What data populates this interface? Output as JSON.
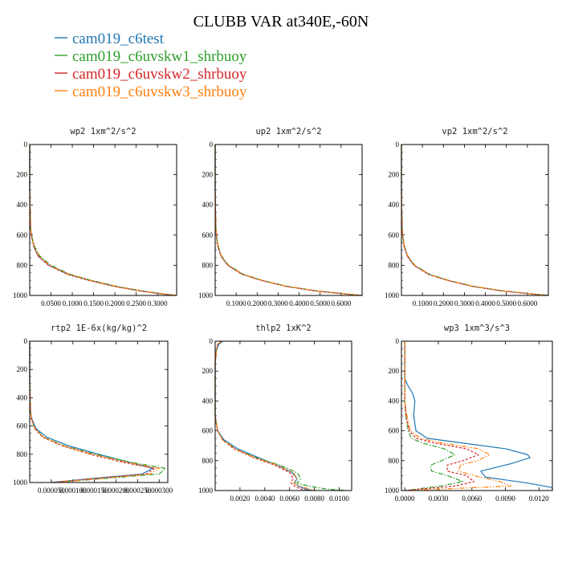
{
  "figure": {
    "title": "CLUBB VAR at340E,-60N",
    "legend": [
      {
        "label": "cam019_c6test",
        "color": "#1f77b4",
        "dash": "solid"
      },
      {
        "label": "cam019_c6uvskw1_shrbuoy",
        "color": "#2ca02c",
        "dash": "dashdot"
      },
      {
        "label": "cam019_c6uvskw2_shrbuoy",
        "color": "#d62728",
        "dash": "dash"
      },
      {
        "label": "cam019_c6uvskw3_shrbuoy",
        "color": "#ff7f0e",
        "dash": "dashdotdot"
      }
    ]
  },
  "chart_data": [
    {
      "type": "line",
      "title": "wp2  1xm^2/s^2",
      "ylim": [
        1000,
        0
      ],
      "xlim": [
        0.0,
        0.345
      ],
      "xticks": [
        0.05,
        0.1,
        0.15,
        0.2,
        0.25,
        0.3
      ],
      "xtick_labels": [
        "0.0500",
        "0.1000",
        "0.1500",
        "0.2000",
        "0.2500",
        "0.3000"
      ],
      "yticks": [
        0,
        200,
        400,
        600,
        800,
        1000
      ],
      "series": [
        {
          "y": [
            0,
            300,
            550,
            620,
            680,
            740,
            800,
            860,
            900,
            940,
            970,
            990,
            1000
          ],
          "x": [
            0.0,
            0.0,
            0.002,
            0.005,
            0.01,
            0.02,
            0.045,
            0.09,
            0.14,
            0.2,
            0.26,
            0.31,
            0.345
          ]
        },
        {
          "y": [
            0,
            300,
            550,
            620,
            680,
            740,
            800,
            860,
            900,
            940,
            970,
            990,
            1000
          ],
          "x": [
            0.0,
            0.0,
            0.002,
            0.006,
            0.012,
            0.024,
            0.05,
            0.095,
            0.145,
            0.205,
            0.265,
            0.315,
            0.345
          ]
        },
        {
          "y": [
            0,
            300,
            550,
            620,
            680,
            740,
            800,
            860,
            900,
            940,
            970,
            990,
            1000
          ],
          "x": [
            0.0,
            0.0,
            0.002,
            0.005,
            0.01,
            0.02,
            0.044,
            0.088,
            0.138,
            0.198,
            0.258,
            0.308,
            0.345
          ]
        },
        {
          "y": [
            0,
            300,
            550,
            620,
            680,
            740,
            800,
            860,
            900,
            940,
            970,
            990,
            1000
          ],
          "x": [
            0.0,
            0.0,
            0.002,
            0.005,
            0.011,
            0.022,
            0.047,
            0.092,
            0.142,
            0.202,
            0.262,
            0.312,
            0.345
          ]
        }
      ]
    },
    {
      "type": "line",
      "title": "up2  1xm^2/s^2",
      "ylim": [
        1000,
        0
      ],
      "xlim": [
        0.0,
        0.7
      ],
      "xticks": [
        0.1,
        0.2,
        0.3,
        0.4,
        0.5,
        0.6
      ],
      "xtick_labels": [
        "0.1000",
        "0.2000",
        "0.3000",
        "0.4000",
        "0.5000",
        "0.6000"
      ],
      "yticks": [
        0,
        200,
        400,
        600,
        800,
        1000
      ],
      "series": [
        {
          "y": [
            0,
            300,
            550,
            620,
            680,
            740,
            800,
            860,
            900,
            940,
            970,
            990,
            1000
          ],
          "x": [
            0.0,
            0.0,
            0.003,
            0.007,
            0.014,
            0.028,
            0.06,
            0.13,
            0.22,
            0.34,
            0.48,
            0.62,
            0.7
          ]
        },
        {
          "y": [
            0,
            300,
            550,
            620,
            680,
            740,
            800,
            860,
            900,
            940,
            970,
            990,
            1000
          ],
          "x": [
            0.0,
            0.0,
            0.003,
            0.008,
            0.016,
            0.031,
            0.064,
            0.135,
            0.225,
            0.345,
            0.485,
            0.625,
            0.7
          ]
        },
        {
          "y": [
            0,
            300,
            550,
            620,
            680,
            740,
            800,
            860,
            900,
            940,
            970,
            990,
            1000
          ],
          "x": [
            0.0,
            0.0,
            0.003,
            0.007,
            0.014,
            0.028,
            0.059,
            0.128,
            0.218,
            0.338,
            0.478,
            0.618,
            0.7
          ]
        },
        {
          "y": [
            0,
            300,
            550,
            620,
            680,
            740,
            800,
            860,
            900,
            940,
            970,
            990,
            1000
          ],
          "x": [
            0.0,
            0.0,
            0.003,
            0.007,
            0.015,
            0.03,
            0.062,
            0.132,
            0.222,
            0.342,
            0.482,
            0.622,
            0.7
          ]
        }
      ]
    },
    {
      "type": "line",
      "title": "vp2  1xm^2/s^2",
      "ylim": [
        1000,
        0
      ],
      "xlim": [
        0.0,
        0.7
      ],
      "xticks": [
        0.1,
        0.2,
        0.3,
        0.4,
        0.5,
        0.6
      ],
      "xtick_labels": [
        "0.1000",
        "0.2000",
        "0.3000",
        "0.4000",
        "0.5000",
        "0.6000"
      ],
      "yticks": [
        0,
        200,
        400,
        600,
        800,
        1000
      ],
      "series": [
        {
          "y": [
            0,
            300,
            550,
            620,
            680,
            740,
            800,
            860,
            900,
            940,
            970,
            990,
            1000
          ],
          "x": [
            0.0,
            0.0,
            0.003,
            0.007,
            0.014,
            0.028,
            0.06,
            0.13,
            0.22,
            0.34,
            0.48,
            0.62,
            0.7
          ]
        },
        {
          "y": [
            0,
            300,
            550,
            620,
            680,
            740,
            800,
            860,
            900,
            940,
            970,
            990,
            1000
          ],
          "x": [
            0.0,
            0.0,
            0.003,
            0.008,
            0.016,
            0.031,
            0.064,
            0.135,
            0.225,
            0.345,
            0.485,
            0.625,
            0.7
          ]
        },
        {
          "y": [
            0,
            300,
            550,
            620,
            680,
            740,
            800,
            860,
            900,
            940,
            970,
            990,
            1000
          ],
          "x": [
            0.0,
            0.0,
            0.003,
            0.007,
            0.014,
            0.028,
            0.059,
            0.128,
            0.218,
            0.338,
            0.478,
            0.618,
            0.7
          ]
        },
        {
          "y": [
            0,
            300,
            550,
            620,
            680,
            740,
            800,
            860,
            900,
            940,
            970,
            990,
            1000
          ],
          "x": [
            0.0,
            0.0,
            0.003,
            0.007,
            0.015,
            0.03,
            0.062,
            0.132,
            0.222,
            0.342,
            0.482,
            0.622,
            0.7
          ]
        }
      ]
    },
    {
      "type": "line",
      "title": "rtp2  1E-6x(kg/kg)^2",
      "ylim": [
        1000,
        0
      ],
      "xlim": [
        0.0,
        0.00032
      ],
      "xticks": [
        5e-05,
        0.0001,
        0.00015,
        0.0002,
        0.00025,
        0.0003
      ],
      "xtick_labels": [
        "0.000050",
        "0.000100",
        "0.000150",
        "0.000200",
        "0.000250",
        "0.000300"
      ],
      "yticks": [
        0,
        200,
        400,
        600,
        800,
        1000
      ],
      "series": [
        {
          "y": [
            0,
            300,
            500,
            560,
            620,
            680,
            740,
            800,
            860,
            900,
            940,
            970,
            1000
          ],
          "x": [
            0.0,
            0.0,
            2e-06,
            6e-06,
            1.5e-05,
            4e-05,
            9e-05,
            0.00016,
            0.000235,
            0.000285,
            0.00026,
            0.00015,
            5e-05
          ]
        },
        {
          "y": [
            0,
            300,
            500,
            560,
            620,
            680,
            740,
            800,
            860,
            900,
            940,
            970,
            1000
          ],
          "x": [
            0.0,
            0.0,
            2e-06,
            5e-06,
            1.2e-05,
            3.3e-05,
            8e-05,
            0.00015,
            0.00024,
            0.000315,
            0.0003,
            0.00018,
            6e-05
          ]
        },
        {
          "y": [
            0,
            300,
            500,
            560,
            620,
            680,
            740,
            800,
            860,
            900,
            940,
            970,
            1000
          ],
          "x": [
            0.0,
            0.0,
            2e-06,
            5e-06,
            1.2e-05,
            3e-05,
            7.5e-05,
            0.00014,
            0.00022,
            0.00029,
            0.00027,
            0.00016,
            5e-05
          ]
        },
        {
          "y": [
            0,
            300,
            500,
            560,
            620,
            680,
            740,
            800,
            860,
            900,
            940,
            970,
            1000
          ],
          "x": [
            0.0,
            0.0,
            2e-06,
            5e-06,
            1.2e-05,
            3.2e-05,
            7.8e-05,
            0.000145,
            0.00023,
            0.0003,
            0.00028,
            0.00017,
            5.5e-05
          ]
        }
      ]
    },
    {
      "type": "line",
      "title": "thlp2  1xK^2",
      "ylim": [
        1000,
        0
      ],
      "xlim": [
        0.0,
        0.011
      ],
      "xticks": [
        0.002,
        0.004,
        0.006,
        0.008,
        0.01
      ],
      "xtick_labels": [
        "0.0020",
        "0.0040",
        "0.0060",
        "0.0080",
        "0.0100"
      ],
      "yticks": [
        0,
        200,
        400,
        600,
        800,
        1000
      ],
      "series": [
        {
          "y": [
            0,
            20,
            60,
            150,
            300,
            500,
            600,
            660,
            720,
            780,
            830,
            880,
            920,
            950,
            970,
            990,
            1000
          ],
          "x": [
            0.0006,
            0.0003,
            0.0001,
            0.0,
            0.0,
            0.0,
            0.0002,
            0.0007,
            0.0018,
            0.0035,
            0.005,
            0.0062,
            0.0066,
            0.0064,
            0.0067,
            0.0073,
            0.0078
          ]
        },
        {
          "y": [
            0,
            20,
            60,
            150,
            300,
            500,
            600,
            660,
            720,
            780,
            830,
            880,
            920,
            950,
            970,
            990,
            1000
          ],
          "x": [
            0.0005,
            0.0002,
            0.0001,
            0.0,
            0.0,
            0.0,
            0.0002,
            0.0006,
            0.0016,
            0.0033,
            0.0052,
            0.0066,
            0.0069,
            0.0066,
            0.0075,
            0.009,
            0.0105
          ]
        },
        {
          "y": [
            0,
            20,
            60,
            150,
            300,
            500,
            600,
            660,
            720,
            780,
            830,
            880,
            920,
            950,
            970,
            990,
            1000
          ],
          "x": [
            0.0005,
            0.0002,
            0.0001,
            0.0,
            0.0,
            0.0,
            0.0002,
            0.0006,
            0.0015,
            0.0031,
            0.0048,
            0.006,
            0.0063,
            0.0061,
            0.0064,
            0.0069,
            0.0074
          ]
        },
        {
          "y": [
            0,
            20,
            60,
            150,
            300,
            500,
            600,
            660,
            720,
            780,
            830,
            880,
            920,
            950,
            970,
            990,
            1000
          ],
          "x": [
            0.0005,
            0.0002,
            0.0001,
            0.0,
            0.0,
            0.0,
            0.0002,
            0.0006,
            0.0016,
            0.0032,
            0.005,
            0.0063,
            0.0066,
            0.0063,
            0.0068,
            0.0076,
            0.0082
          ]
        }
      ]
    },
    {
      "type": "line",
      "title": "wp3  1xm^3/s^3",
      "ylim": [
        1000,
        0
      ],
      "xlim": [
        -0.0003,
        0.0132
      ],
      "xticks": [
        0.0,
        0.003,
        0.006,
        0.009,
        0.012
      ],
      "xtick_labels": [
        "0.0000",
        "0.0030",
        "0.0060",
        "0.0090",
        "0.0120"
      ],
      "yticks": [
        0,
        200,
        400,
        600,
        800,
        1000
      ],
      "series": [
        {
          "y": [
            0,
            200,
            250,
            300,
            350,
            400,
            500,
            600,
            650,
            680,
            720,
            760,
            780,
            820,
            870,
            910,
            950,
            980,
            1000
          ],
          "x": [
            0.0,
            0.0,
            0.0,
            0.0003,
            0.0007,
            0.0009,
            0.0008,
            0.001,
            0.002,
            0.005,
            0.009,
            0.011,
            0.0112,
            0.0095,
            0.0068,
            0.0072,
            0.011,
            0.0132,
            0.0132
          ]
        },
        {
          "y": [
            0,
            200,
            400,
            500,
            600,
            650,
            680,
            720,
            760,
            800,
            830,
            870,
            900,
            940,
            970,
            1000
          ],
          "x": [
            0.0,
            0.0,
            0.0,
            0.0001,
            0.0003,
            0.0006,
            0.0015,
            0.0035,
            0.0045,
            0.0033,
            0.0023,
            0.0024,
            0.0038,
            0.0052,
            0.0032,
            0.0
          ]
        },
        {
          "y": [
            0,
            200,
            400,
            500,
            600,
            650,
            680,
            720,
            760,
            800,
            830,
            870,
            900,
            940,
            970,
            1000
          ],
          "x": [
            0.0,
            0.0,
            0.0,
            0.0001,
            0.0004,
            0.001,
            0.0025,
            0.0055,
            0.0066,
            0.0052,
            0.0038,
            0.0038,
            0.0055,
            0.0062,
            0.0045,
            0.0
          ]
        },
        {
          "y": [
            0,
            200,
            400,
            500,
            600,
            650,
            680,
            720,
            760,
            800,
            830,
            870,
            900,
            940,
            970,
            1000
          ],
          "x": [
            0.0,
            0.0,
            0.0,
            0.0002,
            0.0005,
            0.0014,
            0.0032,
            0.0066,
            0.0076,
            0.0065,
            0.005,
            0.0048,
            0.0062,
            0.0085,
            0.0095,
            0.0
          ]
        }
      ]
    }
  ]
}
